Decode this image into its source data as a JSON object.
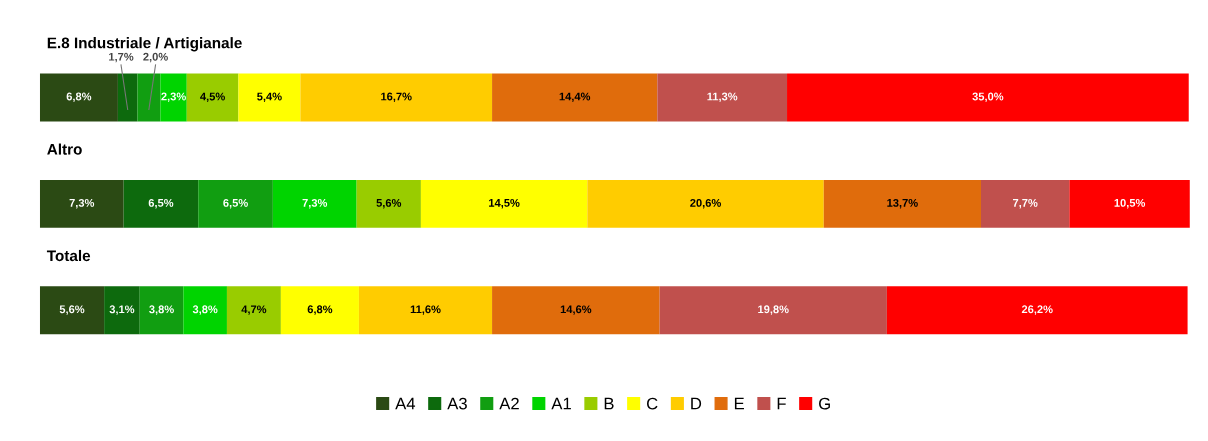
{
  "chart_data": {
    "type": "bar",
    "orientation": "horizontal",
    "stacked": true,
    "tick_labels": false,
    "legend": "bottom",
    "categories": [
      "E.8 Industriale / Artigianale",
      "Altro",
      "Totale"
    ],
    "series": [
      {
        "name": "A4",
        "color": "#2b4a14",
        "values": [
          6.8,
          7.3,
          5.6
        ],
        "value_labels": [
          "6,8%",
          "7,3%",
          "5,6%"
        ]
      },
      {
        "name": "A3",
        "color": "#0d6a0d",
        "values": [
          1.7,
          6.5,
          3.1
        ],
        "value_labels": [
          "1,7%",
          "6,5%",
          "3,1%"
        ]
      },
      {
        "name": "A2",
        "color": "#119e11",
        "values": [
          2.0,
          6.5,
          3.8
        ],
        "value_labels": [
          "2,0%",
          "6,5%",
          "3,8%"
        ]
      },
      {
        "name": "A1",
        "color": "#00d400",
        "values": [
          2.3,
          7.3,
          3.8
        ],
        "value_labels": [
          "2,3%",
          "7,3%",
          "3,8%"
        ]
      },
      {
        "name": "B",
        "color": "#99cc00",
        "values": [
          4.5,
          5.6,
          4.7
        ],
        "value_labels": [
          "4,5%",
          "5,6%",
          "4,7%"
        ]
      },
      {
        "name": "C",
        "color": "#ffff00",
        "values": [
          5.4,
          14.5,
          6.8
        ],
        "value_labels": [
          "5,4%",
          "14,5%",
          "6,8%"
        ]
      },
      {
        "name": "D",
        "color": "#ffcc00",
        "values": [
          16.7,
          20.6,
          11.6
        ],
        "value_labels": [
          "16,7%",
          "20,6%",
          "11,6%"
        ]
      },
      {
        "name": "E",
        "color": "#e06c0c",
        "values": [
          14.4,
          13.7,
          14.6
        ],
        "value_labels": [
          "14,4%",
          "13,7%",
          "14,6%"
        ]
      },
      {
        "name": "F",
        "color": "#c0504d",
        "values": [
          11.3,
          7.7,
          19.8
        ],
        "value_labels": [
          "11,3%",
          "7,7%",
          "19,8%"
        ]
      },
      {
        "name": "G",
        "color": "#ff0000",
        "values": [
          35.0,
          10.5,
          26.2
        ],
        "value_labels": [
          "35,0%",
          "10,5%",
          "26,2%"
        ]
      }
    ]
  }
}
